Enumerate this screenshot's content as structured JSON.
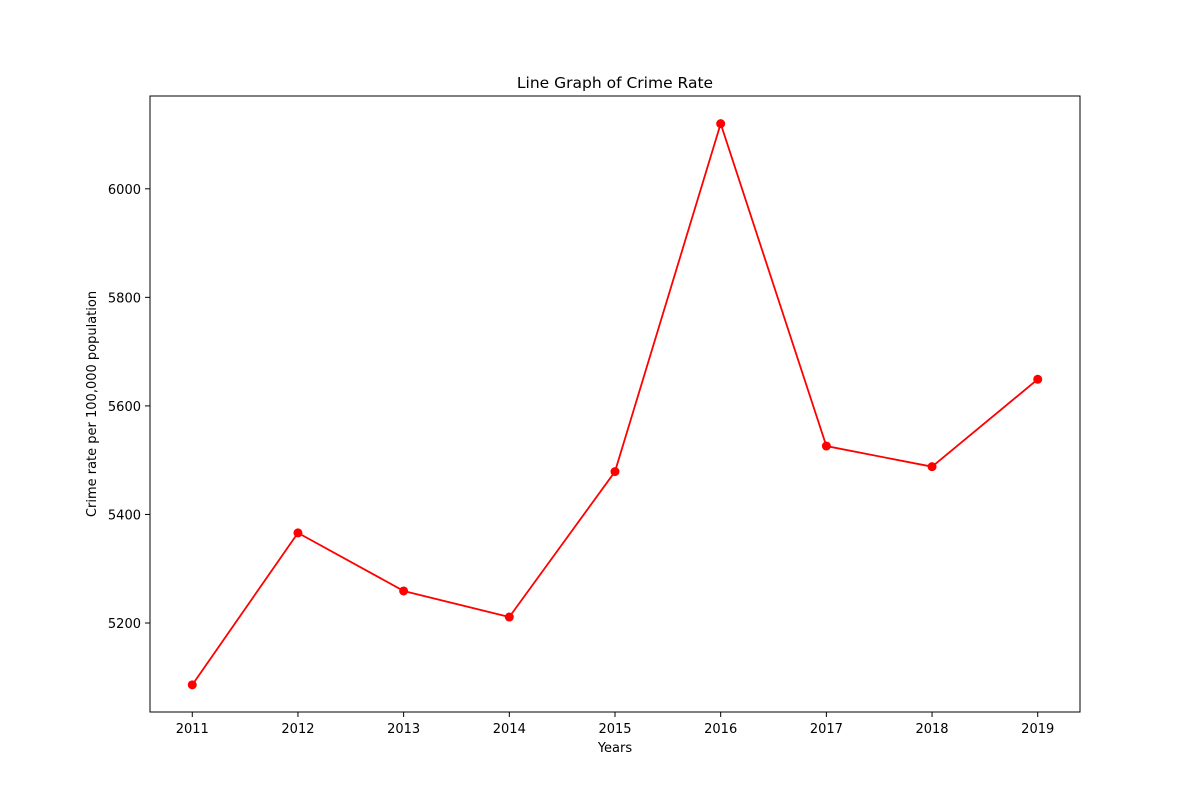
{
  "chart_data": {
    "type": "line",
    "title": "Line Graph of Crime Rate",
    "xlabel": "Years",
    "ylabel": "Crime rate per 100,000 population",
    "x": [
      2011,
      2012,
      2013,
      2014,
      2015,
      2016,
      2017,
      2018,
      2019
    ],
    "x_tick_labels": [
      "2011",
      "2012",
      "2013",
      "2014",
      "2015",
      "2016",
      "2017",
      "2018",
      "2019"
    ],
    "y_ticks": [
      5200,
      5400,
      5600,
      5800,
      6000
    ],
    "y_tick_labels": [
      "5200",
      "5400",
      "5600",
      "5800",
      "6000"
    ],
    "xlim": [
      2010.6,
      2019.4
    ],
    "ylim": [
      5036,
      6171
    ],
    "series": [
      {
        "values": [
          5086,
          5366,
          5259,
          5211,
          5479,
          6120,
          5526,
          5488,
          5649
        ],
        "color": "#ff0000",
        "marker": "circle"
      }
    ],
    "grid": false,
    "legend": "none"
  }
}
